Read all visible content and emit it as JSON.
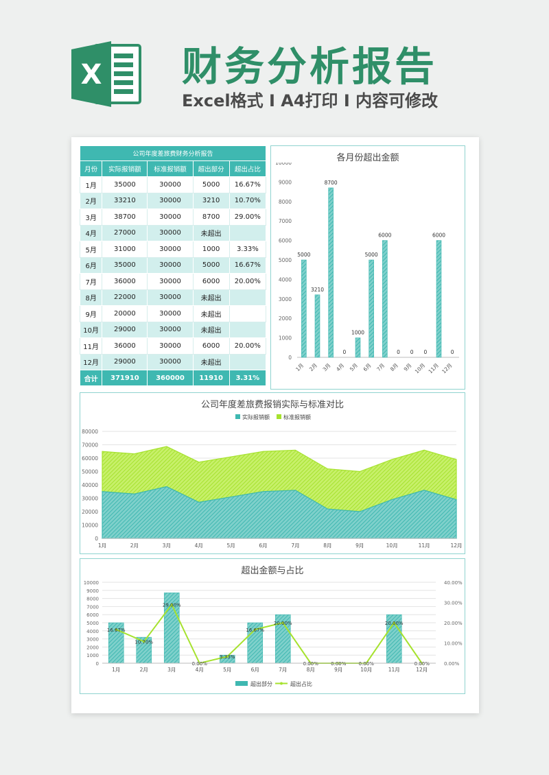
{
  "header": {
    "title": "财务分析报告",
    "subtitle": "Excel格式 I A4打印 I 内容可修改",
    "logo_letter": "X"
  },
  "colors": {
    "teal": "#3fb8b1",
    "teal_light": "#d2efed",
    "lime": "#a6e22e",
    "brand_green": "#2f8f68"
  },
  "table": {
    "caption": "公司年度差旅费财务分析报告",
    "headers": [
      "月份",
      "实际报销额",
      "标准报销额",
      "超出部分",
      "超出占比"
    ],
    "rows": [
      [
        "1月",
        "35000",
        "30000",
        "5000",
        "16.67%"
      ],
      [
        "2月",
        "33210",
        "30000",
        "3210",
        "10.70%"
      ],
      [
        "3月",
        "38700",
        "30000",
        "8700",
        "29.00%"
      ],
      [
        "4月",
        "27000",
        "30000",
        "未超出",
        ""
      ],
      [
        "5月",
        "31000",
        "30000",
        "1000",
        "3.33%"
      ],
      [
        "6月",
        "35000",
        "30000",
        "5000",
        "16.67%"
      ],
      [
        "7月",
        "36000",
        "30000",
        "6000",
        "20.00%"
      ],
      [
        "8月",
        "22000",
        "30000",
        "未超出",
        ""
      ],
      [
        "9月",
        "20000",
        "30000",
        "未超出",
        ""
      ],
      [
        "10月",
        "29000",
        "30000",
        "未超出",
        ""
      ],
      [
        "11月",
        "36000",
        "30000",
        "6000",
        "20.00%"
      ],
      [
        "12月",
        "29000",
        "30000",
        "未超出",
        ""
      ]
    ],
    "total": [
      "合计",
      "371910",
      "360000",
      "11910",
      "3.31%"
    ]
  },
  "chart_data": [
    {
      "type": "bar",
      "title": "各月份超出金额",
      "categories": [
        "1月",
        "2月",
        "3月",
        "4月",
        "5月",
        "6月",
        "7月",
        "8月",
        "9月",
        "10月",
        "11月",
        "12月"
      ],
      "values": [
        5000,
        3210,
        8700,
        0,
        1000,
        5000,
        6000,
        0,
        0,
        0,
        6000,
        0
      ],
      "ylim": [
        0,
        10000
      ],
      "yticks": [
        0,
        1000,
        2000,
        3000,
        4000,
        5000,
        6000,
        7000,
        8000,
        9000,
        10000
      ],
      "grid": false
    },
    {
      "type": "area",
      "title": "公司年度差旅费报销实际与标准对比",
      "categories": [
        "1月",
        "2月",
        "3月",
        "4月",
        "5月",
        "6月",
        "7月",
        "8月",
        "9月",
        "10月",
        "11月",
        "12月"
      ],
      "series": [
        {
          "name": "实际报销额",
          "values": [
            35000,
            33210,
            38700,
            27000,
            31000,
            35000,
            36000,
            22000,
            20000,
            29000,
            36000,
            29000
          ]
        },
        {
          "name": "标准报销额",
          "values": [
            30000,
            30000,
            30000,
            30000,
            30000,
            30000,
            30000,
            30000,
            30000,
            30000,
            30000,
            30000
          ]
        }
      ],
      "stacked": true,
      "ylim": [
        0,
        80000
      ],
      "yticks": [
        0,
        10000,
        20000,
        30000,
        40000,
        50000,
        60000,
        70000,
        80000
      ],
      "legend": "top",
      "grid": true
    },
    {
      "type": "bar",
      "title": "超出金额与占比",
      "categories": [
        "1月",
        "2月",
        "3月",
        "4月",
        "5月",
        "6月",
        "7月",
        "8月",
        "9月",
        "10月",
        "11月",
        "12月"
      ],
      "series": [
        {
          "name": "超出部分",
          "type": "bar",
          "axis": "left",
          "values": [
            5000,
            3210,
            8700,
            0,
            1000,
            5000,
            6000,
            0,
            0,
            0,
            6000,
            0
          ]
        },
        {
          "name": "超出占比",
          "type": "line",
          "axis": "right",
          "values": [
            16.67,
            10.7,
            29.0,
            0,
            3.33,
            16.67,
            20.0,
            0,
            0,
            0,
            20.0,
            0
          ],
          "labels": [
            "16.67%",
            "10.70%",
            "29.00%",
            "0.00%",
            "3.33%",
            "16.67%",
            "20.00%",
            "0.00%",
            "0.00%",
            "0.00%",
            "20.00%",
            "0.00%"
          ]
        }
      ],
      "ylim": [
        0,
        10000
      ],
      "yticks": [
        0,
        1000,
        2000,
        3000,
        4000,
        5000,
        6000,
        7000,
        8000,
        9000,
        10000
      ],
      "y2lim": [
        0,
        40
      ],
      "y2ticks": [
        "0.00%",
        "10.00%",
        "20.00%",
        "30.00%",
        "40.00%"
      ],
      "legend": "bottom",
      "grid": true
    }
  ]
}
